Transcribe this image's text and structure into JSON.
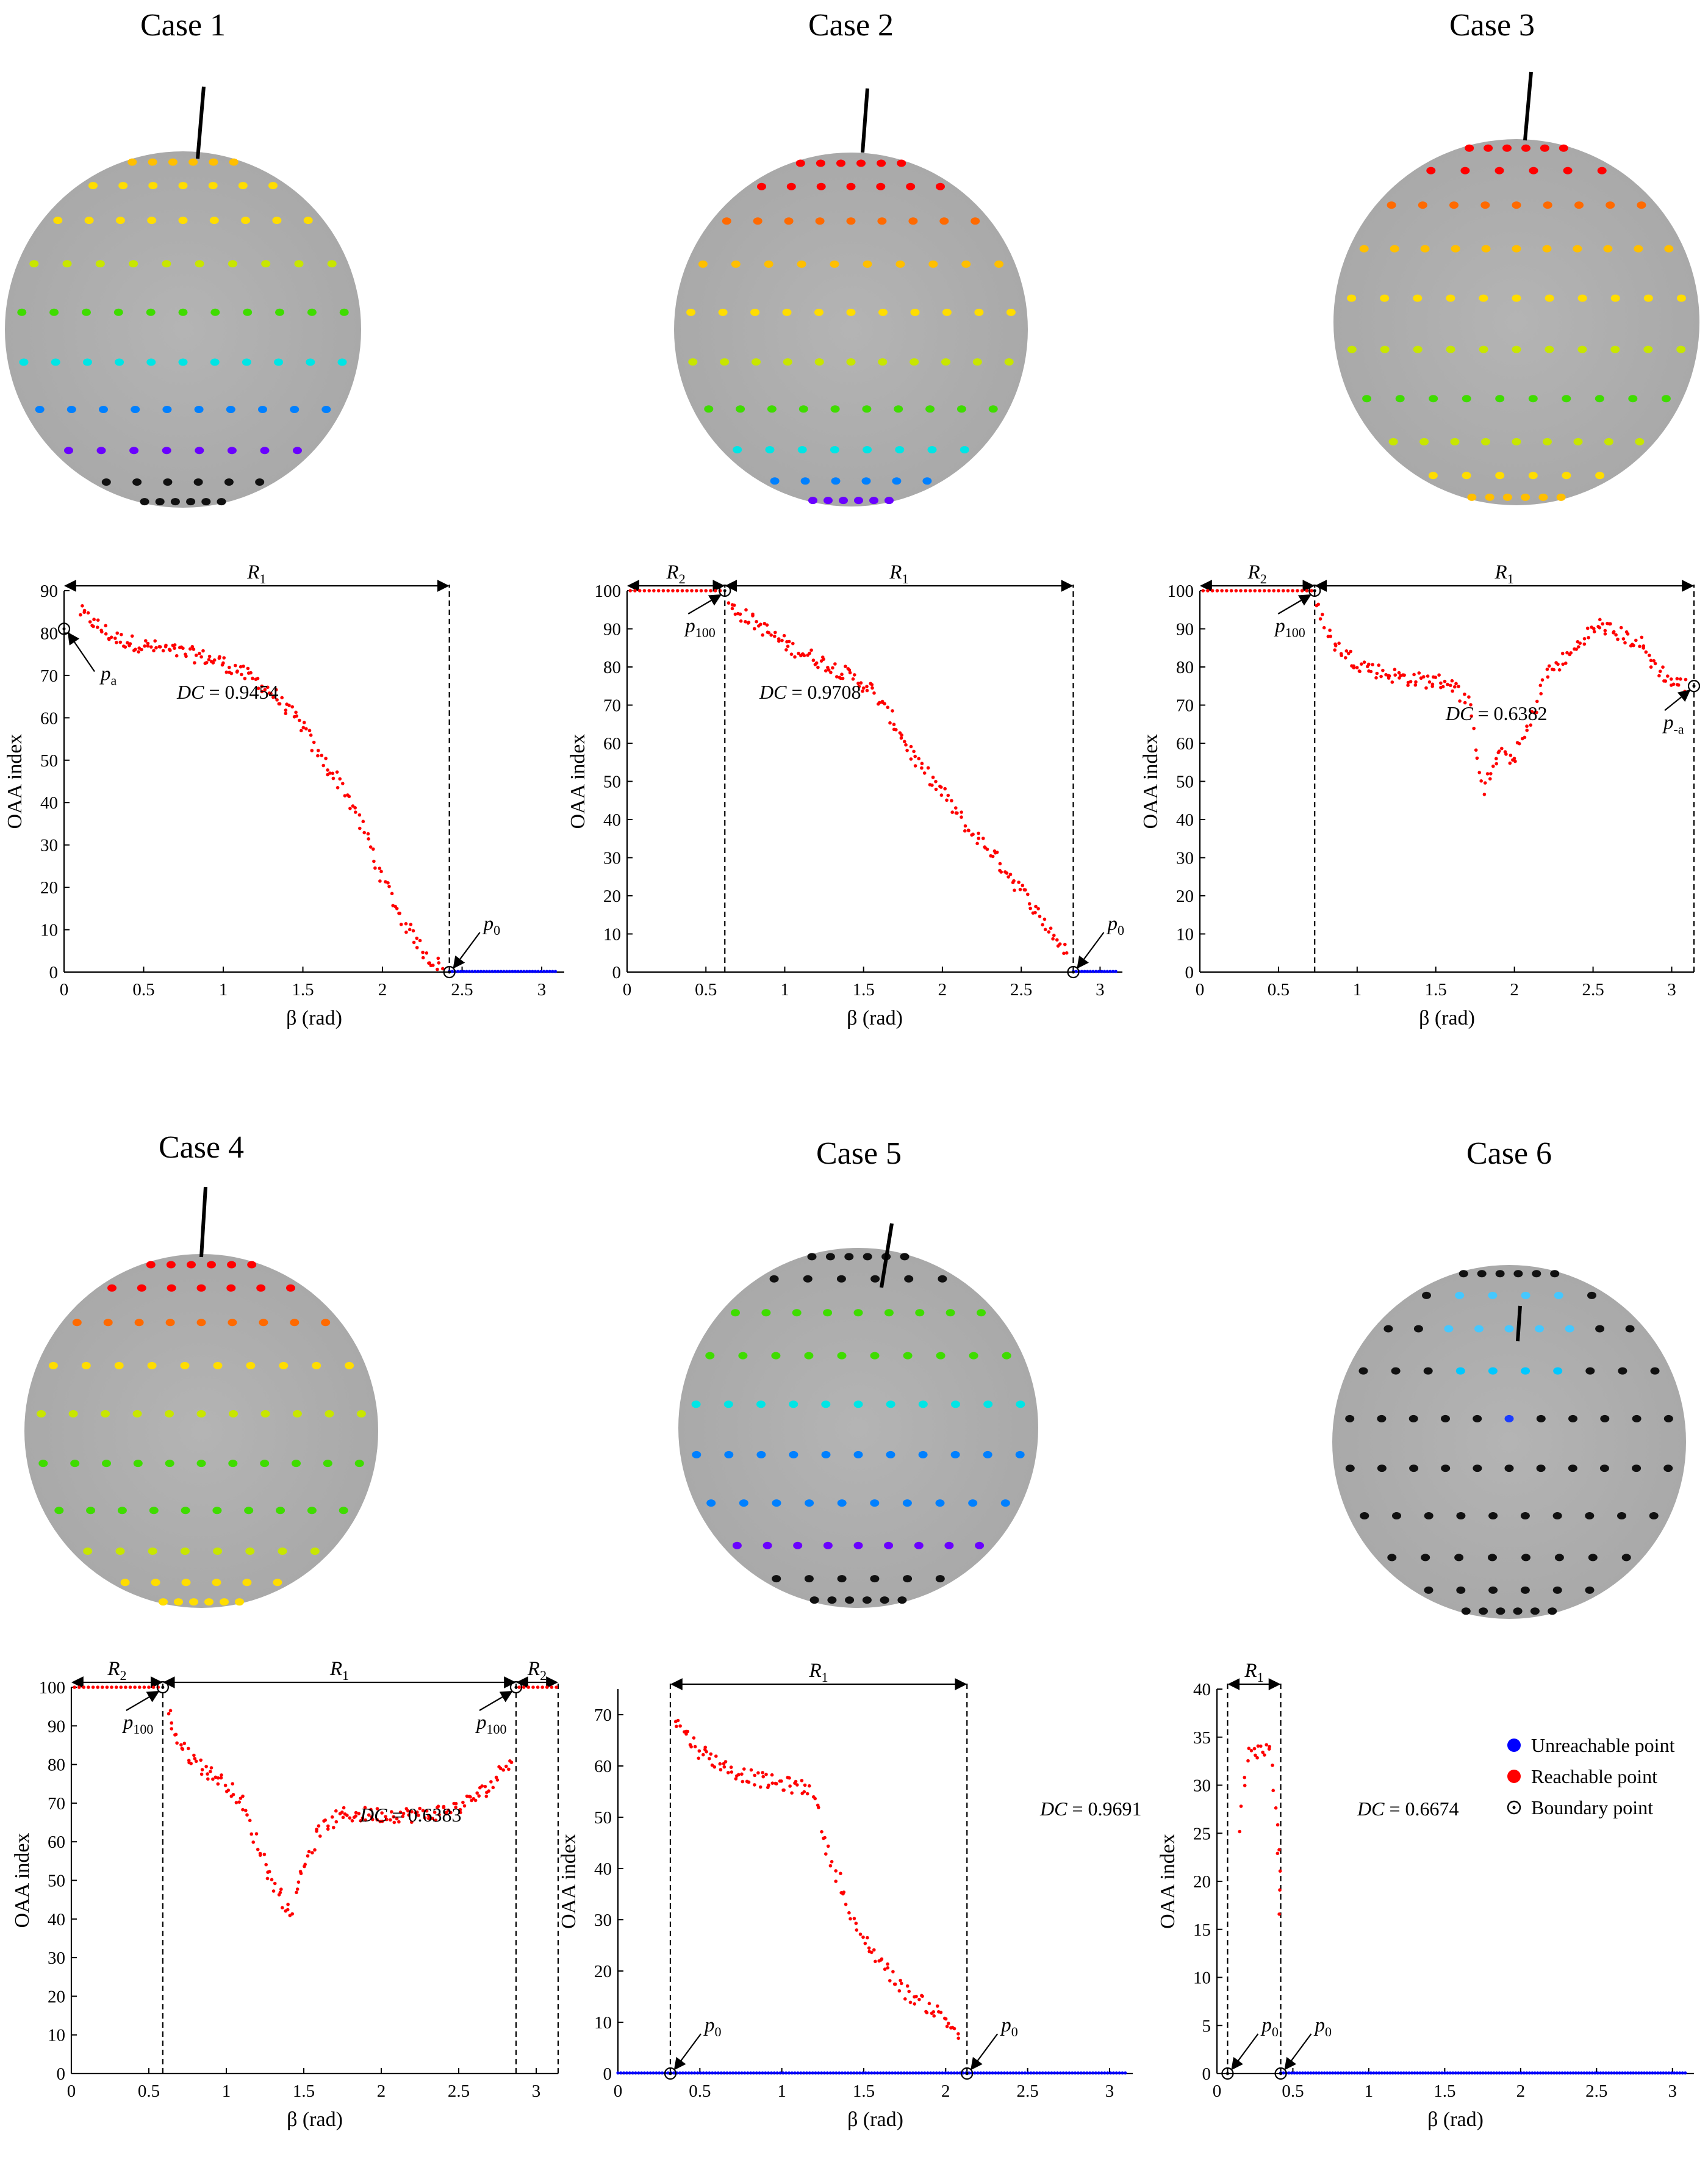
{
  "legend": {
    "unreachable": "Unreachable point",
    "reachable": "Reachable point",
    "boundary": "Boundary point",
    "unreachable_color": "#0000ff",
    "reachable_color": "#ff0000"
  },
  "chart_data": [
    {
      "case_title": "Case 1",
      "type": "scatter",
      "xlabel": "β (rad)",
      "ylabel": "OAA index",
      "xlim": [
        0,
        3.1416
      ],
      "ylim": [
        0,
        90
      ],
      "yticks": [
        0,
        10,
        20,
        30,
        40,
        50,
        60,
        70,
        80,
        90
      ],
      "xticks": [
        0,
        0.5,
        1,
        1.5,
        2,
        2.5,
        3
      ],
      "xticklabels": [
        "0",
        "0.5",
        "1",
        "1.5",
        "2",
        "2.5",
        "3"
      ],
      "dc_label": "DC = 0.9454",
      "ranges": [
        {
          "label": "R1",
          "from": 0.0,
          "to": 2.42
        }
      ],
      "vlines": [
        2.42
      ],
      "boundary_points": [
        {
          "x": 0.0,
          "y": 81,
          "label": "pa"
        },
        {
          "x": 2.42,
          "y": 0,
          "label": "p0"
        }
      ],
      "reachable_curve": [
        [
          0.1,
          85
        ],
        [
          0.3,
          79
        ],
        [
          0.5,
          77
        ],
        [
          0.8,
          75
        ],
        [
          1.0,
          73
        ],
        [
          1.2,
          69
        ],
        [
          1.3,
          66
        ],
        [
          1.5,
          58
        ],
        [
          1.6,
          51
        ],
        [
          1.75,
          44
        ],
        [
          1.9,
          32
        ],
        [
          2.0,
          22
        ],
        [
          2.1,
          14
        ],
        [
          2.2,
          8
        ],
        [
          2.3,
          3
        ],
        [
          2.4,
          0.5
        ]
      ],
      "reachable_flat": null,
      "unreachable_range": [
        2.42,
        3.1
      ]
    },
    {
      "case_title": "Case 2",
      "type": "scatter",
      "xlabel": "β (rad)",
      "ylabel": "OAA index",
      "xlim": [
        0,
        3.1416
      ],
      "ylim": [
        0,
        100
      ],
      "yticks": [
        0,
        10,
        20,
        30,
        40,
        50,
        60,
        70,
        80,
        90,
        100
      ],
      "xticks": [
        0,
        0.5,
        1,
        1.5,
        2,
        2.5,
        3
      ],
      "xticklabels": [
        "0",
        "0.5",
        "1",
        "1.5",
        "2",
        "2.5",
        "3"
      ],
      "dc_label": "DC = 0.9708",
      "ranges": [
        {
          "label": "R2",
          "from": 0.0,
          "to": 0.62
        },
        {
          "label": "R1",
          "from": 0.62,
          "to": 2.83
        }
      ],
      "vlines": [
        0.62,
        2.83
      ],
      "boundary_points": [
        {
          "x": 0.62,
          "y": 100,
          "label": "p100"
        },
        {
          "x": 2.83,
          "y": 0,
          "label": "p0"
        }
      ],
      "reachable_curve": [
        [
          0.65,
          96
        ],
        [
          0.8,
          92
        ],
        [
          1.0,
          86
        ],
        [
          1.2,
          82
        ],
        [
          1.4,
          78
        ],
        [
          1.55,
          74
        ],
        [
          1.7,
          65
        ],
        [
          1.85,
          54
        ],
        [
          2.0,
          47
        ],
        [
          2.15,
          38
        ],
        [
          2.3,
          32
        ],
        [
          2.45,
          24
        ],
        [
          2.6,
          16
        ],
        [
          2.7,
          10
        ],
        [
          2.8,
          4
        ]
      ],
      "reachable_flat": [
        0.0,
        0.62
      ],
      "unreachable_range": [
        2.83,
        3.1
      ]
    },
    {
      "case_title": "Case 3",
      "type": "scatter",
      "xlabel": "β (rad)",
      "ylabel": "OAA index",
      "xlim": [
        0,
        3.1416
      ],
      "ylim": [
        0,
        100
      ],
      "yticks": [
        0,
        10,
        20,
        30,
        40,
        50,
        60,
        70,
        80,
        90,
        100
      ],
      "xticks": [
        0,
        0.5,
        1,
        1.5,
        2,
        2.5,
        3
      ],
      "xticklabels": [
        "0",
        "0.5",
        "1",
        "1.5",
        "2",
        "2.5",
        "3"
      ],
      "dc_label": "DC = 0.6382",
      "ranges": [
        {
          "label": "R2",
          "from": 0.0,
          "to": 0.73
        },
        {
          "label": "R1",
          "from": 0.73,
          "to": 3.1416
        }
      ],
      "vlines": [
        0.73,
        3.1416
      ],
      "boundary_points": [
        {
          "x": 0.73,
          "y": 100,
          "label": "p100"
        },
        {
          "x": 3.1416,
          "y": 75,
          "label": "p-a"
        }
      ],
      "reachable_curve": [
        [
          0.75,
          96
        ],
        [
          0.85,
          86
        ],
        [
          1.0,
          81
        ],
        [
          1.2,
          78
        ],
        [
          1.4,
          76.5
        ],
        [
          1.6,
          76
        ],
        [
          1.7,
          71
        ],
        [
          1.75,
          60
        ],
        [
          1.8,
          48
        ],
        [
          1.9,
          57
        ],
        [
          2.0,
          56
        ],
        [
          2.1,
          65
        ],
        [
          2.2,
          78
        ],
        [
          2.35,
          83
        ],
        [
          2.45,
          88
        ],
        [
          2.55,
          91
        ],
        [
          2.7,
          88
        ],
        [
          2.8,
          86
        ],
        [
          2.9,
          80
        ],
        [
          3.0,
          76
        ],
        [
          3.1,
          75
        ]
      ],
      "reachable_flat": [
        0.0,
        0.73
      ],
      "unreachable_range": null
    },
    {
      "case_title": "Case 4",
      "type": "scatter",
      "xlabel": "β (rad)",
      "ylabel": "OAA index",
      "xlim": [
        0,
        3.1416
      ],
      "ylim": [
        0,
        100
      ],
      "yticks": [
        0,
        10,
        20,
        30,
        40,
        50,
        60,
        70,
        80,
        90,
        100
      ],
      "xticks": [
        0,
        0.5,
        1,
        1.5,
        2,
        2.5,
        3
      ],
      "xticklabels": [
        "0",
        "0.5",
        "1",
        "1.5",
        "2",
        "2.5",
        "3"
      ],
      "dc_label": "DC = 0.6383",
      "ranges": [
        {
          "label": "R2",
          "from": 0.0,
          "to": 0.59
        },
        {
          "label": "R1",
          "from": 0.59,
          "to": 2.87
        },
        {
          "label": "R2",
          "from": 2.87,
          "to": 3.1416
        }
      ],
      "vlines": [
        0.59,
        2.87,
        3.1416
      ],
      "boundary_points": [
        {
          "x": 0.59,
          "y": 100,
          "label": "p100"
        },
        {
          "x": 2.87,
          "y": 100,
          "label": "p100"
        }
      ],
      "reachable_curve": [
        [
          0.62,
          94
        ],
        [
          0.7,
          85
        ],
        [
          0.85,
          79
        ],
        [
          1.0,
          75
        ],
        [
          1.1,
          70
        ],
        [
          1.2,
          59
        ],
        [
          1.3,
          50
        ],
        [
          1.38,
          44
        ],
        [
          1.42,
          41
        ],
        [
          1.48,
          52
        ],
        [
          1.6,
          63
        ],
        [
          1.75,
          67
        ],
        [
          2.0,
          67
        ],
        [
          2.3,
          67
        ],
        [
          2.5,
          69
        ],
        [
          2.7,
          74
        ],
        [
          2.8,
          80
        ],
        [
          2.85,
          83
        ]
      ],
      "reachable_flat": [
        0.0,
        0.59
      ],
      "reachable_flat2": [
        2.87,
        3.1416
      ],
      "unreachable_range": null
    },
    {
      "case_title": "Case 5",
      "type": "scatter",
      "xlabel": "β (rad)",
      "ylabel": "OAA index",
      "xlim": [
        0,
        3.1416
      ],
      "ylim": [
        0,
        75
      ],
      "yticks": [
        0,
        10,
        20,
        30,
        40,
        50,
        60,
        70
      ],
      "xticks": [
        0,
        0.5,
        1,
        1.5,
        2,
        2.5,
        3
      ],
      "xticklabels": [
        "0",
        "0.5",
        "1",
        "1.5",
        "2",
        "2.5",
        "3"
      ],
      "dc_label": "DC = 0.9691",
      "ranges": [
        {
          "label": "R1",
          "from": 0.32,
          "to": 2.13
        }
      ],
      "vlines": [
        0.32,
        2.13
      ],
      "boundary_points": [
        {
          "x": 0.32,
          "y": 0,
          "label": "p0"
        },
        {
          "x": 2.13,
          "y": 0,
          "label": "p0"
        }
      ],
      "reachable_curve": [
        [
          0.35,
          69
        ],
        [
          0.5,
          63
        ],
        [
          0.7,
          59
        ],
        [
          0.9,
          57
        ],
        [
          1.1,
          56
        ],
        [
          1.2,
          55
        ],
        [
          1.25,
          46
        ],
        [
          1.35,
          38
        ],
        [
          1.45,
          28
        ],
        [
          1.55,
          24
        ],
        [
          1.65,
          20
        ],
        [
          1.75,
          16
        ],
        [
          1.85,
          14
        ],
        [
          1.95,
          12
        ],
        [
          2.05,
          9
        ],
        [
          2.1,
          7
        ]
      ],
      "reachable_flat": null,
      "unreachable_range": [
        0.0,
        3.1
      ]
    },
    {
      "case_title": "Case 6",
      "type": "scatter",
      "xlabel": "β (rad)",
      "ylabel": "OAA index",
      "xlim": [
        0,
        3.1416
      ],
      "ylim": [
        0,
        40
      ],
      "yticks": [
        0,
        5,
        10,
        15,
        20,
        25,
        30,
        35,
        40
      ],
      "xticks": [
        0,
        0.5,
        1,
        1.5,
        2,
        2.5,
        3
      ],
      "xticklabels": [
        "0",
        "0.5",
        "1",
        "1.5",
        "2",
        "2.5",
        "3"
      ],
      "dc_label": "DC = 0.6674",
      "ranges": [
        {
          "label": "R1",
          "from": 0.07,
          "to": 0.42
        }
      ],
      "vlines": [
        0.07,
        0.42
      ],
      "boundary_points": [
        {
          "x": 0.07,
          "y": 0,
          "label": "p0"
        },
        {
          "x": 0.42,
          "y": 0,
          "label": "p0"
        }
      ],
      "reachable_curve": [
        [
          0.15,
          25.5
        ],
        [
          0.2,
          33
        ],
        [
          0.25,
          33.5
        ],
        [
          0.3,
          33.5
        ],
        [
          0.35,
          33.5
        ],
        [
          0.4,
          25.5
        ],
        [
          0.41,
          21
        ],
        [
          0.42,
          15
        ]
      ],
      "reachable_flat": null,
      "unreachable_range": [
        0.42,
        3.1
      ]
    }
  ]
}
